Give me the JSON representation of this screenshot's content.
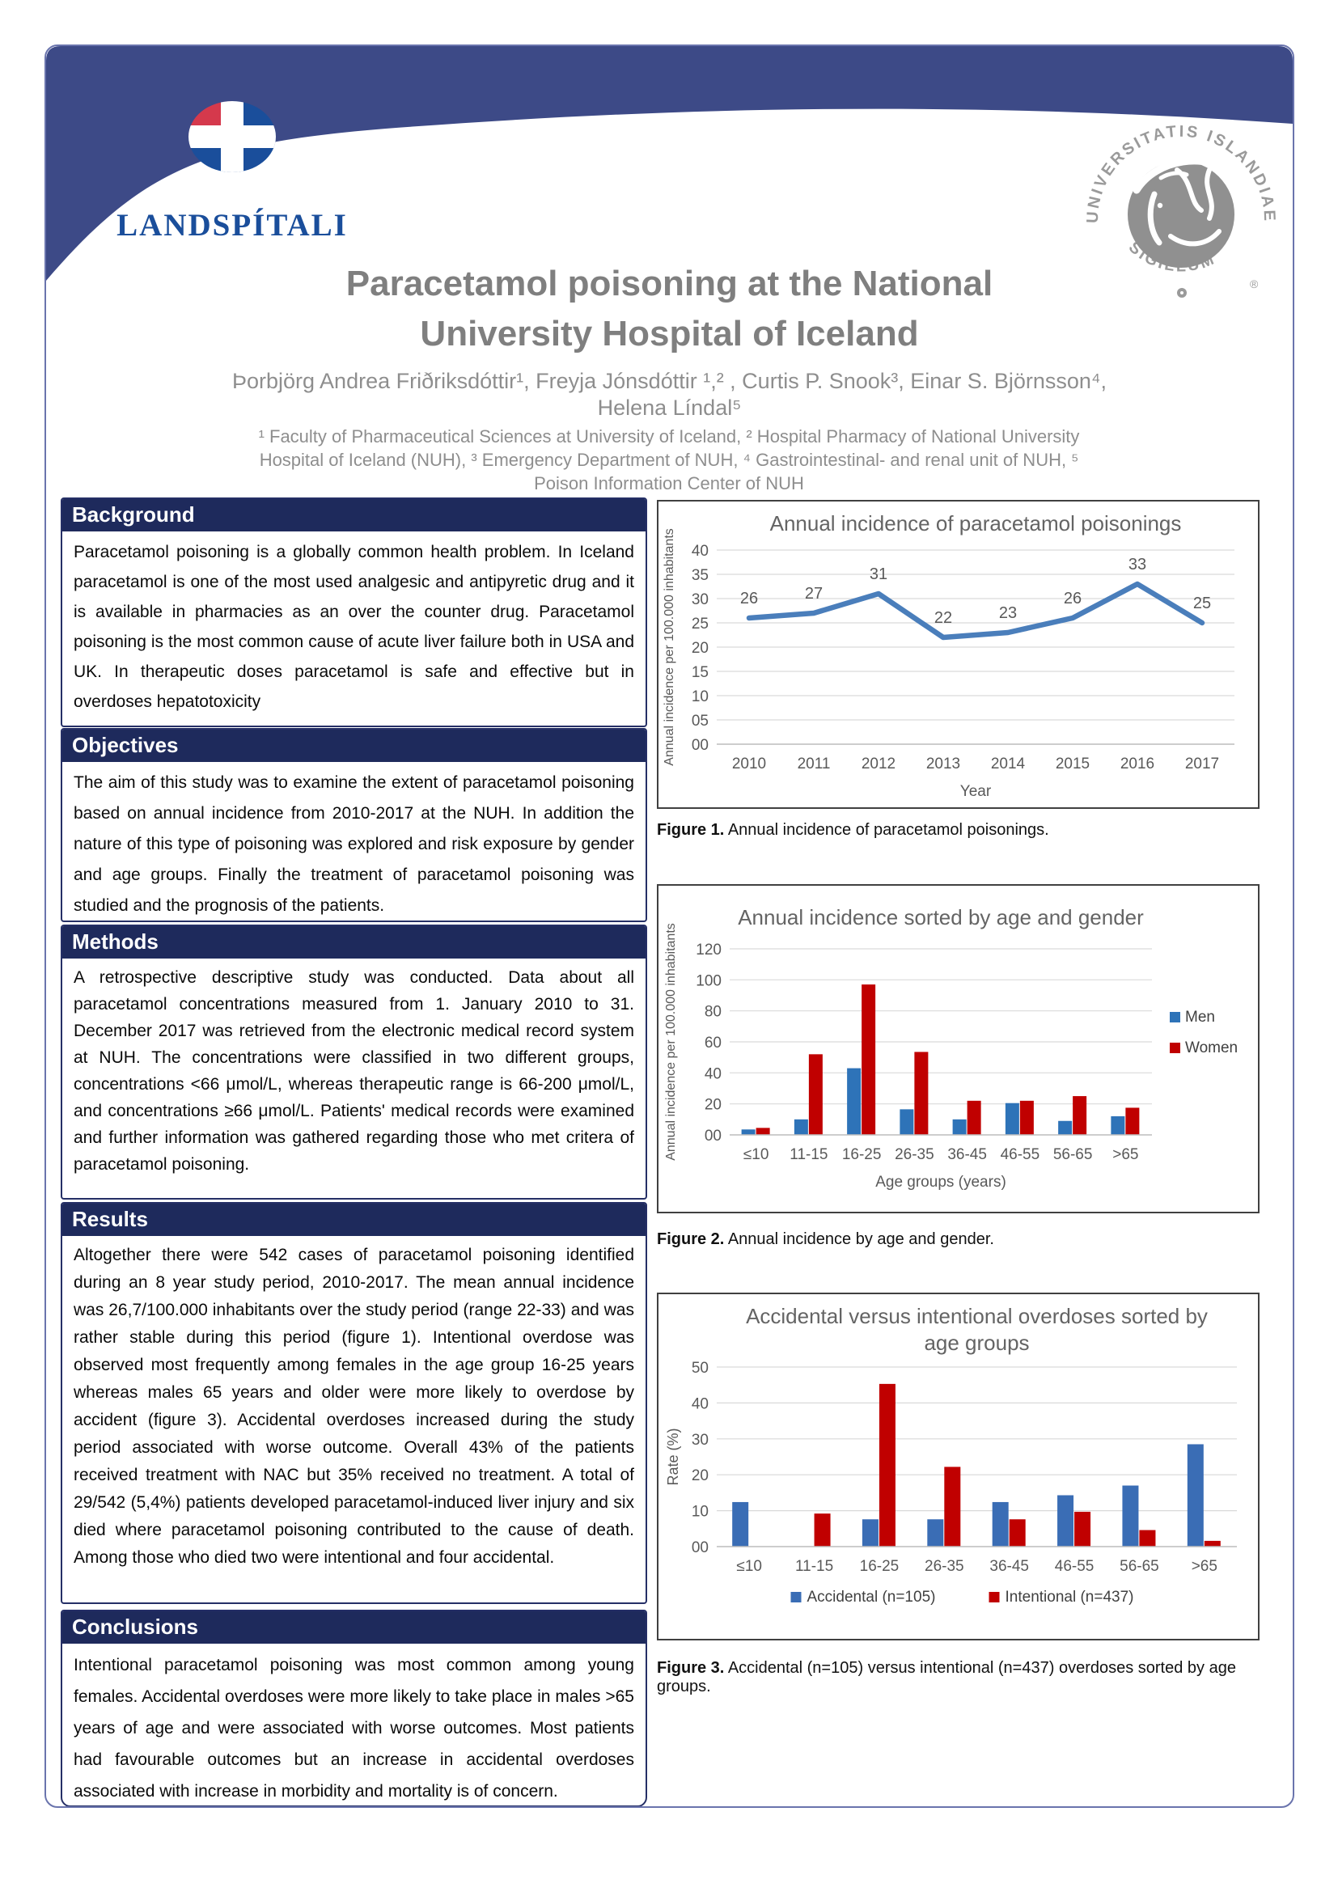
{
  "colors": {
    "header_navy": "#1e2a5c",
    "band_indigo": "#3d4a87",
    "frame_border": "#6a74ad",
    "line_blue": "#4a7ebb",
    "bar_blue": "#2e73b8",
    "bar_red": "#c00000",
    "chart_gray": "#595959",
    "logo_blue": "#1a4e9b",
    "logo_red": "#d5394c",
    "seal_gray": "#9a9a9a"
  },
  "poster": {
    "logo_text": "LANDSPÍTALI",
    "seal_text_top": "UNIVERSITATIS ISLANDIAE",
    "seal_text_bottom": "SIGILLUM",
    "seal_reg": "®",
    "title": [
      "Paracetamol poisoning at the National",
      "University Hospital of Iceland"
    ],
    "authors": [
      "Þorbjörg Andrea Friðriksdóttir¹, Freyja Jónsdóttir ¹,² , Curtis P. Snook³, Einar S. Björnsson⁴,",
      "Helena Líndal⁵"
    ],
    "affiliations": "¹ Faculty of Pharmaceutical Sciences at University of Iceland, ² Hospital Pharmacy of National University Hospital of Iceland (NUH), ³ Emergency Department of NUH, ⁴ Gastrointestinal- and renal unit of NUH, ⁵ Poison Information Center of NUH"
  },
  "sections": {
    "background": {
      "heading": "Background",
      "body": "Paracetamol poisoning is a globally common health problem. In Iceland paracetamol is one of the most used analgesic and antipyretic drug and it is available in pharmacies as an over the counter drug. Paracetamol poisoning is the most common cause of acute liver failure both in USA and UK. In therapeutic doses paracetamol is safe and effective but in overdoses hepatotoxicity"
    },
    "objectives": {
      "heading": "Objectives",
      "body": "The aim of this study was to examine the extent of paracetamol poisoning based on annual incidence from 2010-2017 at the NUH. In addition the nature of this type of poisoning was explored and risk exposure by gender and age groups. Finally the treatment of paracetamol poisoning was studied and the prognosis of the patients."
    },
    "methods": {
      "heading": "Methods",
      "body": "A retrospective descriptive study was conducted. Data about all paracetamol concentrations measured from 1. January 2010 to 31. December 2017 was retrieved from the electronic medical record system at NUH. The concentrations were classified in two different groups, concentrations <66 μmol/L, whereas therapeutic range is 66-200 μmol/L, and concentrations ≥66 μmol/L. Patients' medical records were examined and further information was gathered regarding those who met critera of paracetamol poisoning."
    },
    "results": {
      "heading": "Results",
      "body": "Altogether there were 542 cases of paracetamol poisoning identified during an 8 year study period, 2010-2017. The mean annual incidence was 26,7/100.000 inhabitants over the study period (range 22-33) and was rather stable during this period (figure 1). Intentional overdose was observed most frequently among females in the age group 16-25 years whereas males 65 years and older were more likely to overdose by accident (figure 3). Accidental overdoses increased during the study period associated with worse outcome. Overall 43% of the patients received treatment with NAC but 35% received no treatment. A total of 29/542 (5,4%) patients developed paracetamol-induced liver injury and six died where paracetamol poisoning contributed to the cause of death. Among those who died two were intentional and four accidental."
    },
    "conclusions": {
      "heading": "Conclusions",
      "body": "Intentional paracetamol poisoning was most common among young females. Accidental overdoses were more likely to take place in males >65 years of age and were associated with worse outcomes. Most patients had favourable outcomes but an increase in accidental overdoses associated with increase in morbidity and mortality is of concern."
    }
  },
  "figures": {
    "fig1": {
      "label": "Figure 1.",
      "caption": " Annual incidence of paracetamol poisonings."
    },
    "fig2": {
      "label": "Figure 2.",
      "caption": " Annual incidence by age and gender."
    },
    "fig3": {
      "label": "Figure 3.",
      "caption": " Accidental (n=105) versus intentional (n=437) overdoses sorted by age groups."
    }
  },
  "chart_data": [
    {
      "type": "line",
      "title": "Annual incidence of paracetamol poisonings",
      "categories": [
        "2010",
        "2011",
        "2012",
        "2013",
        "2014",
        "2015",
        "2016",
        "2017"
      ],
      "series": [
        {
          "name": "Annual incidence",
          "color": "#4a7ebb",
          "values": [
            26,
            27,
            31,
            22,
            23,
            26,
            33,
            25
          ]
        }
      ],
      "data_labels": true,
      "ylim": [
        0,
        40
      ],
      "yticks": [
        0,
        5,
        10,
        15,
        20,
        25,
        30,
        35,
        40
      ],
      "ytick_labels": [
        "00",
        "05",
        "10",
        "15",
        "20",
        "25",
        "30",
        "35",
        "40"
      ],
      "ylabel": "Annual incidence per 100.000 inhabitants",
      "xlabel": "Year",
      "grid": true,
      "legend": "none"
    },
    {
      "type": "bar",
      "title": "Annual incidence sorted by age and gender",
      "categories": [
        "≤10",
        "11-15",
        "16-25",
        "26-35",
        "36-45",
        "46-55",
        "56-65",
        ">65"
      ],
      "series": [
        {
          "name": "Men",
          "color": "#2e73b8",
          "values": [
            3.5,
            10,
            43,
            16.5,
            10,
            20.5,
            9,
            12
          ]
        },
        {
          "name": "Women",
          "color": "#c00000",
          "values": [
            4.5,
            52,
            97,
            53.5,
            22,
            22,
            25,
            17.5
          ]
        }
      ],
      "ylim": [
        0,
        120
      ],
      "yticks": [
        0,
        20,
        40,
        60,
        80,
        100,
        120
      ],
      "ytick_labels": [
        "00",
        "20",
        "40",
        "60",
        "80",
        "100",
        "120"
      ],
      "ylabel": "Annual incidence per 100.000 inhabitants",
      "xlabel": "Age groups (years)",
      "grid": true,
      "legend": "right"
    },
    {
      "type": "bar",
      "title": [
        "Accidental versus intentional overdoses sorted by",
        "age groups"
      ],
      "categories": [
        "≤10",
        "11-15",
        "16-25",
        "26-35",
        "36-45",
        "46-55",
        "56-65",
        ">65"
      ],
      "series": [
        {
          "name": "Accidental (n=105)",
          "color": "#3a6db5",
          "values": [
            12.4,
            0,
            7.6,
            7.6,
            12.4,
            14.3,
            17,
            28.5
          ]
        },
        {
          "name": "Intentional (n=437)",
          "color": "#c00000",
          "values": [
            0,
            9.2,
            45.3,
            22.2,
            7.6,
            9.7,
            4.6,
            1.6
          ]
        }
      ],
      "ylim": [
        0,
        50
      ],
      "yticks": [
        0,
        10,
        20,
        30,
        40,
        50
      ],
      "ytick_labels": [
        "00",
        "10",
        "20",
        "30",
        "40",
        "50"
      ],
      "ylabel": "Rate (%)",
      "xlabel": "",
      "grid": true,
      "legend": "bottom"
    }
  ]
}
